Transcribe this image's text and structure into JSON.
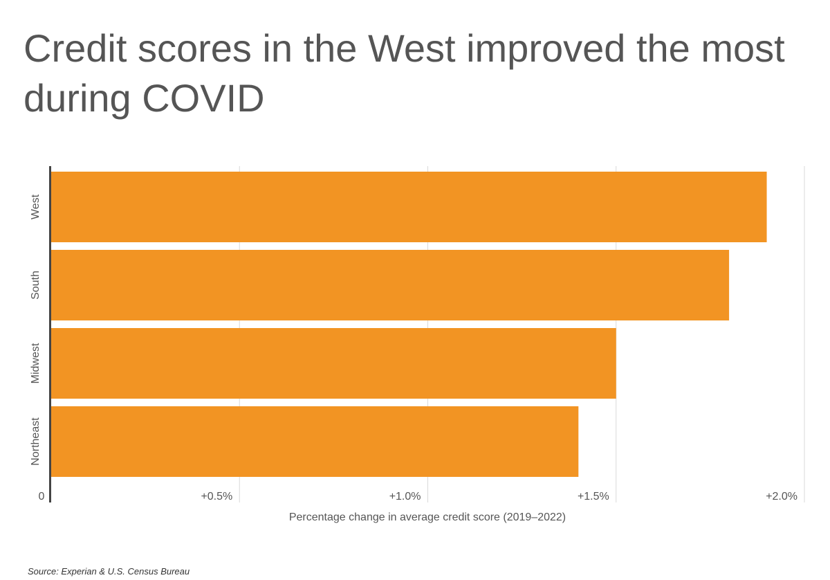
{
  "page": {
    "title": "Credit scores in the West improved the most during COVID",
    "source": "Source: Experian & U.S. Census Bureau"
  },
  "colors": {
    "bar": "#f29423",
    "grid": "#d9d9d9",
    "axis": "#444444",
    "text": "#555555"
  },
  "chart_data": {
    "type": "bar",
    "orientation": "horizontal",
    "categories": [
      "West",
      "South",
      "Midwest",
      "Northeast"
    ],
    "values": [
      1.9,
      1.8,
      1.5,
      1.4
    ],
    "xlabel": "Percentage change in average credit score (2019–2022)",
    "ylabel": "",
    "xlim": [
      0,
      2.0
    ],
    "x_ticks": [
      {
        "value": 0,
        "label": "0"
      },
      {
        "value": 0.5,
        "label": "+0.5%"
      },
      {
        "value": 1.0,
        "label": "+1.0%"
      },
      {
        "value": 1.5,
        "label": "+1.5%"
      },
      {
        "value": 2.0,
        "label": "+2.0%"
      }
    ],
    "grid": true,
    "legend": "none"
  }
}
